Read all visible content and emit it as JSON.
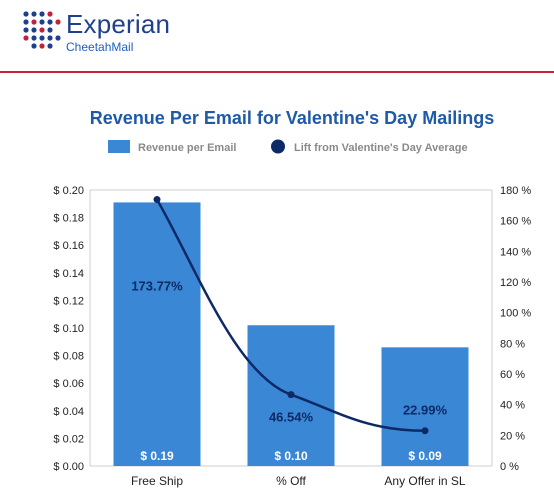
{
  "header": {
    "brand_name": "Experian",
    "sub_brand": "CheetahMail",
    "brand_color": "#1f3f8f",
    "accent_color": "#c4213b",
    "logo_icon": "experian-dot-logo-icon"
  },
  "chart_data": {
    "type": "bar",
    "title": "Revenue Per Email for Valentine's Day Mailings",
    "categories": [
      "Free Ship",
      "% Off",
      "Any Offer in SL"
    ],
    "bar_series": {
      "name": "Revenue per Email",
      "values": [
        0.19,
        0.1,
        0.09
      ],
      "plotted_values": [
        0.191,
        0.102,
        0.086
      ],
      "labels": [
        "$ 0.19",
        "$ 0.10",
        "$ 0.09"
      ],
      "color": "#3a87d5"
    },
    "line_series": {
      "name": "Lift from Valentine's Day Average",
      "values": [
        173.77,
        46.54,
        22.99
      ],
      "labels": [
        "173.77%",
        "46.54%",
        "22.99%"
      ],
      "color": "#0d2a66"
    },
    "y_left": {
      "ylim": [
        0,
        0.2
      ],
      "ticks": [
        0,
        0.02,
        0.04,
        0.06,
        0.08,
        0.1,
        0.12,
        0.14,
        0.16,
        0.18,
        0.2
      ],
      "tick_labels": [
        "$ 0.00",
        "$ 0.02",
        "$ 0.04",
        "$ 0.06",
        "$ 0.08",
        "$ 0.10",
        "$ 0.12",
        "$ 0.14",
        "$ 0.16",
        "$ 0.18",
        "$ 0.20"
      ]
    },
    "y_right": {
      "ylim": [
        0,
        180
      ],
      "ticks": [
        0,
        20,
        40,
        60,
        80,
        100,
        120,
        140,
        160,
        180
      ],
      "tick_labels": [
        "0 %",
        "20 %",
        "40 %",
        "60 %",
        "80 %",
        "100 %",
        "120 %",
        "140 %",
        "160 %",
        "180 %"
      ]
    },
    "legend_position": "top",
    "grid": false
  }
}
